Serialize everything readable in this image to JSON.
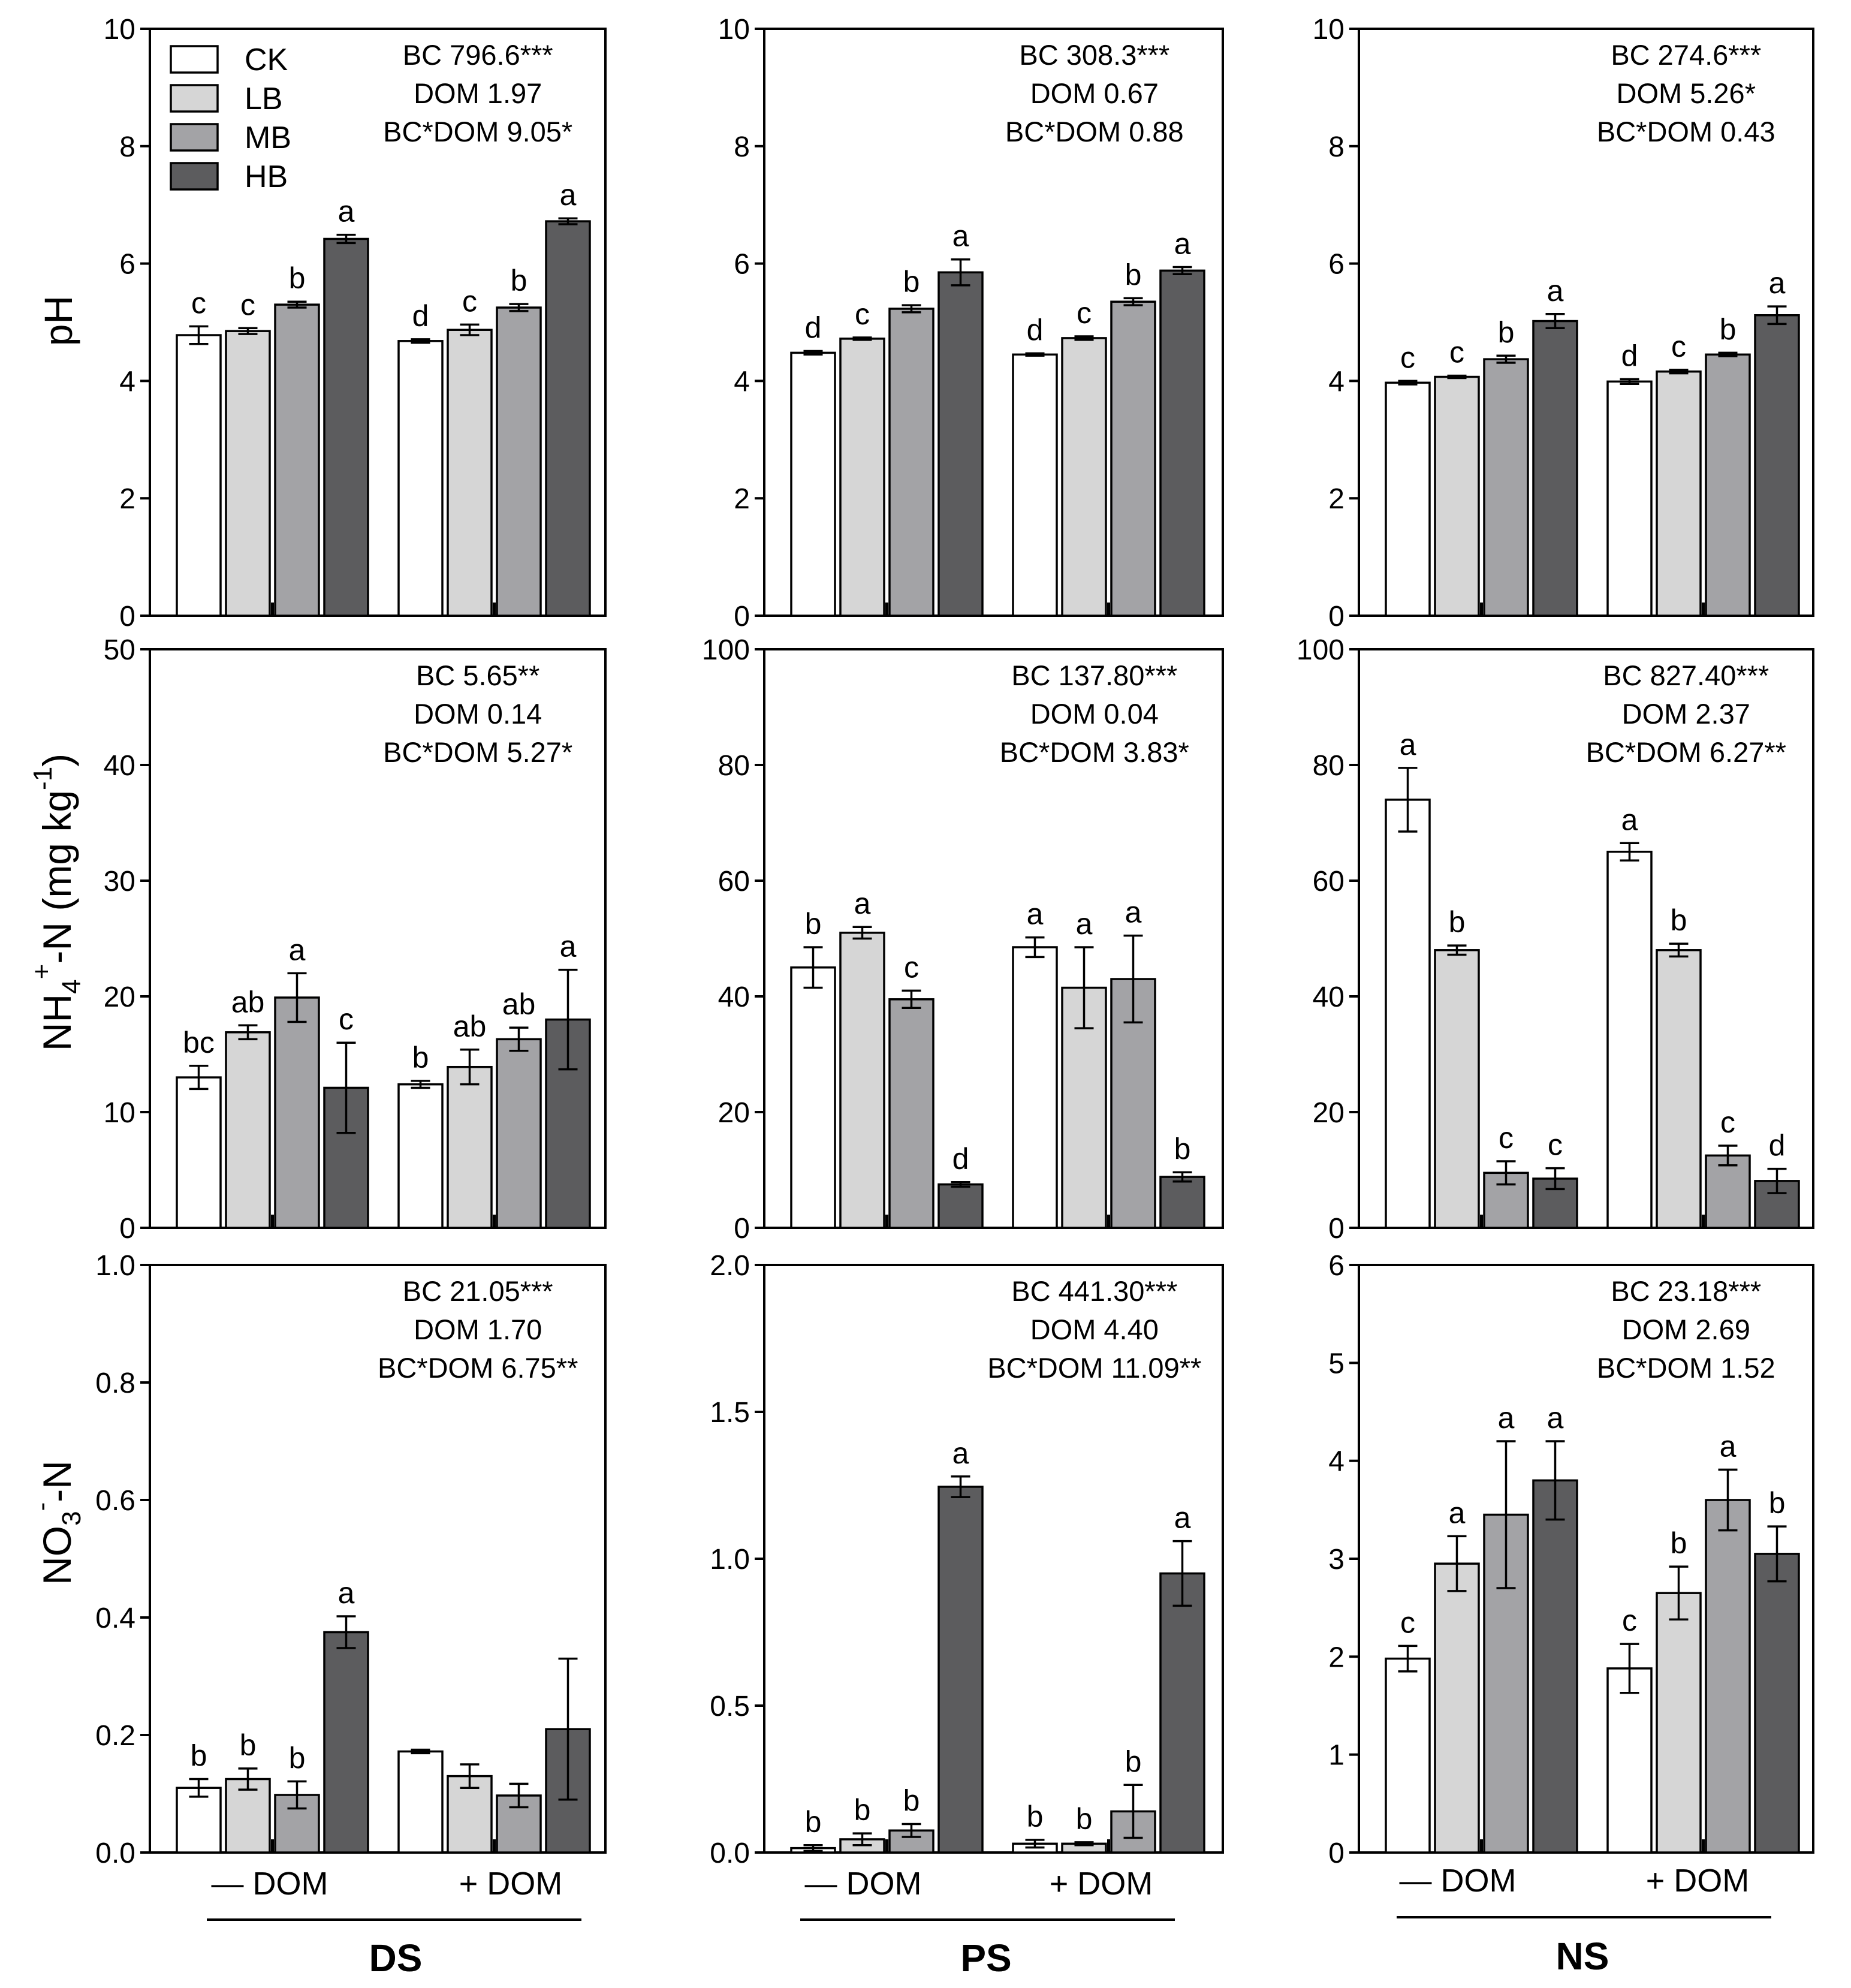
{
  "legend": [
    {
      "label": "CK",
      "color": "#ffffff"
    },
    {
      "label": "LB",
      "color": "#d6d6d6"
    },
    {
      "label": "MB",
      "color": "#a3a3a6"
    },
    {
      "label": "HB",
      "color": "#5c5c5e"
    }
  ],
  "row_labels": {
    "ph": "pH",
    "nh4": {
      "main": "NH",
      "sub": "4",
      "sup": "+",
      "rest": "-N (mg kg",
      "sup2": "-1",
      "end": ")"
    },
    "no3": {
      "main": "NO",
      "sub": "3",
      "sup": "-",
      "rest": "-N"
    }
  },
  "group_labels": [
    "— DOM",
    "+ DOM"
  ],
  "soil_labels": [
    "DS",
    "PS",
    "NS"
  ],
  "chart_data": [
    {
      "type": "bar",
      "soil": "DS",
      "variable": "pH",
      "ylim": [
        0,
        10
      ],
      "yticks": [
        "0",
        "2",
        "4",
        "6",
        "8",
        "10"
      ],
      "stats": [
        "BC 796.6***",
        "DOM 1.97",
        "BC*DOM 9.05*"
      ],
      "groups": [
        {
          "values": [
            4.78,
            4.85,
            5.3,
            6.42
          ],
          "errors": [
            0.15,
            0.05,
            0.05,
            0.07
          ],
          "letters": [
            "c",
            "c",
            "b",
            "a"
          ]
        },
        {
          "values": [
            4.68,
            4.87,
            5.25,
            6.72
          ],
          "errors": [
            0.03,
            0.09,
            0.06,
            0.05
          ],
          "letters": [
            "d",
            "c",
            "b",
            "a"
          ]
        }
      ]
    },
    {
      "type": "bar",
      "soil": "PS",
      "variable": "pH",
      "ylim": [
        0,
        10
      ],
      "yticks": [
        "0",
        "2",
        "4",
        "6",
        "8",
        "10"
      ],
      "stats": [
        "BC 308.3***",
        "DOM 0.67",
        "BC*DOM 0.88"
      ],
      "groups": [
        {
          "values": [
            4.48,
            4.72,
            5.23,
            5.85
          ],
          "errors": [
            0.03,
            0.02,
            0.06,
            0.22
          ],
          "letters": [
            "d",
            "c",
            "b",
            "a"
          ]
        },
        {
          "values": [
            4.45,
            4.73,
            5.35,
            5.88
          ],
          "errors": [
            0.02,
            0.03,
            0.06,
            0.06
          ],
          "letters": [
            "d",
            "c",
            "b",
            "a"
          ]
        }
      ]
    },
    {
      "type": "bar",
      "soil": "NS",
      "variable": "pH",
      "ylim": [
        0,
        10
      ],
      "yticks": [
        "0",
        "2",
        "4",
        "6",
        "8",
        "10"
      ],
      "stats": [
        "BC 274.6***",
        "DOM 5.26*",
        "BC*DOM 0.43"
      ],
      "groups": [
        {
          "values": [
            3.97,
            4.07,
            4.37,
            5.02
          ],
          "errors": [
            0.03,
            0.02,
            0.06,
            0.12
          ],
          "letters": [
            "c",
            "c",
            "b",
            "a"
          ]
        },
        {
          "values": [
            3.99,
            4.16,
            4.45,
            5.12
          ],
          "errors": [
            0.04,
            0.03,
            0.03,
            0.15
          ],
          "letters": [
            "d",
            "c",
            "b",
            "a"
          ]
        }
      ]
    },
    {
      "type": "bar",
      "soil": "DS",
      "variable": "NH4+-N (mg kg-1)",
      "ylim": [
        0,
        50
      ],
      "yticks": [
        "0",
        "10",
        "20",
        "30",
        "40",
        "50"
      ],
      "stats": [
        "BC 5.65**",
        "DOM 0.14",
        "BC*DOM 5.27*"
      ],
      "groups": [
        {
          "values": [
            13,
            16.9,
            19.9,
            12.1
          ],
          "errors": [
            1,
            0.6,
            2.1,
            3.9
          ],
          "letters": [
            "bc",
            "ab",
            "a",
            "c"
          ]
        },
        {
          "values": [
            12.4,
            13.9,
            16.3,
            18
          ],
          "errors": [
            0.3,
            1.5,
            1,
            4.3
          ],
          "letters": [
            "b",
            "ab",
            "ab",
            "a"
          ]
        }
      ]
    },
    {
      "type": "bar",
      "soil": "PS",
      "variable": "NH4+-N (mg kg-1)",
      "ylim": [
        0,
        100
      ],
      "yticks": [
        "0",
        "20",
        "40",
        "60",
        "80",
        "100"
      ],
      "stats": [
        "BC 137.80***",
        "DOM 0.04",
        "BC*DOM 3.83*"
      ],
      "groups": [
        {
          "values": [
            45,
            51,
            39.5,
            7.5
          ],
          "errors": [
            3.5,
            1,
            1.5,
            0.4
          ],
          "letters": [
            "b",
            "a",
            "c",
            "d"
          ]
        },
        {
          "values": [
            48.5,
            41.5,
            43,
            8.8
          ],
          "errors": [
            1.7,
            7,
            7.5,
            0.8
          ],
          "letters": [
            "a",
            "a",
            "a",
            "b"
          ]
        }
      ]
    },
    {
      "type": "bar",
      "soil": "NS",
      "variable": "NH4+-N (mg kg-1)",
      "ylim": [
        0,
        100
      ],
      "yticks": [
        "0",
        "20",
        "40",
        "60",
        "80",
        "100"
      ],
      "stats": [
        "BC 827.40***",
        "DOM 2.37",
        "BC*DOM 6.27**"
      ],
      "groups": [
        {
          "values": [
            74,
            48,
            9.5,
            8.5
          ],
          "errors": [
            5.5,
            0.8,
            2,
            1.8
          ],
          "letters": [
            "a",
            "b",
            "c",
            "c"
          ]
        },
        {
          "values": [
            65,
            48,
            12.5,
            8.1
          ],
          "errors": [
            1.5,
            1.1,
            1.7,
            2.1
          ],
          "letters": [
            "a",
            "b",
            "c",
            "d"
          ]
        }
      ]
    },
    {
      "type": "bar",
      "soil": "DS",
      "variable": "NO3--N",
      "ylim": [
        0,
        1
      ],
      "yticks": [
        "0.0",
        "0.2",
        "0.4",
        "0.6",
        "0.8",
        "1.0"
      ],
      "stats": [
        "BC 21.05***",
        "DOM 1.70",
        "BC*DOM 6.75**"
      ],
      "groups": [
        {
          "values": [
            0.11,
            0.125,
            0.098,
            0.375
          ],
          "errors": [
            0.015,
            0.018,
            0.023,
            0.027
          ],
          "letters": [
            "b",
            "b",
            "b",
            "a"
          ]
        },
        {
          "values": [
            0.172,
            0.13,
            0.097,
            0.21
          ],
          "errors": [
            0.003,
            0.02,
            0.02,
            0.12
          ],
          "letters": [
            "",
            "",
            "",
            ""
          ]
        }
      ]
    },
    {
      "type": "bar",
      "soil": "PS",
      "variable": "NO3--N",
      "ylim": [
        0,
        2
      ],
      "yticks": [
        "0.0",
        "0.5",
        "1.0",
        "1.5",
        "2.0"
      ],
      "stats": [
        "BC 441.30***",
        "DOM 4.40",
        "BC*DOM 11.09**"
      ],
      "groups": [
        {
          "values": [
            0.015,
            0.045,
            0.075,
            1.245
          ],
          "errors": [
            0.01,
            0.02,
            0.022,
            0.035
          ],
          "letters": [
            "b",
            "b",
            "b",
            "a"
          ]
        },
        {
          "values": [
            0.03,
            0.03,
            0.14,
            0.95
          ],
          "errors": [
            0.013,
            0.005,
            0.09,
            0.11
          ],
          "letters": [
            "b",
            "b",
            "b",
            "a"
          ]
        }
      ]
    },
    {
      "type": "bar",
      "soil": "NS",
      "variable": "NO3--N",
      "ylim": [
        0,
        6
      ],
      "yticks": [
        "0",
        "1",
        "2",
        "3",
        "4",
        "5",
        "6"
      ],
      "stats": [
        "BC 23.18***",
        "DOM 2.69",
        "BC*DOM 1.52"
      ],
      "groups": [
        {
          "values": [
            1.98,
            2.95,
            3.45,
            3.8
          ],
          "errors": [
            0.13,
            0.28,
            0.75,
            0.4
          ],
          "letters": [
            "c",
            "a",
            "a",
            "a"
          ]
        },
        {
          "values": [
            1.88,
            2.65,
            3.6,
            3.05
          ],
          "errors": [
            0.25,
            0.27,
            0.31,
            0.28
          ],
          "letters": [
            "c",
            "b",
            "a",
            "b"
          ]
        }
      ]
    }
  ]
}
